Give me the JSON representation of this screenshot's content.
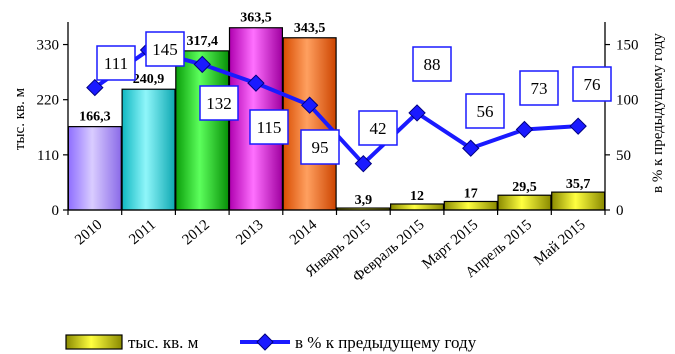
{
  "chart_data": {
    "type": "bar+line",
    "categories": [
      "2010",
      "2011",
      "2012",
      "2013",
      "2014",
      "Январь 2015",
      "Февраль 2015",
      "Март 2015",
      "Апрель 2015",
      "Май 2015"
    ],
    "bar_series": {
      "name": "тыс. кв. м",
      "values": [
        166.3,
        240.9,
        317.4,
        363.5,
        343.5,
        3.9,
        12,
        17,
        29.5,
        35.7
      ],
      "labels": [
        "166,3",
        "240,9",
        "317,4",
        "363,5",
        "343,5",
        "3,9",
        "12",
        "17",
        "29,5",
        "35,7"
      ],
      "colors": [
        "#b49cff",
        "#22d0d8",
        "#13cc13",
        "#e010e0",
        "#ff6a12",
        "#c6c610",
        "#c6c610",
        "#c6c610",
        "#c6c610",
        "#c6c610"
      ]
    },
    "line_series": {
      "name": "в % к предыдущему году",
      "values": [
        111,
        145,
        132,
        115,
        95,
        42,
        88,
        56,
        73,
        76
      ],
      "labels": [
        "111",
        "145",
        "132",
        "115",
        "95",
        "42",
        "88",
        "56",
        "73",
        "76"
      ],
      "color": "#1a1aff"
    },
    "y_left": {
      "label": "тыс. кв. м",
      "ticks": [
        "0",
        "110",
        "220",
        "330"
      ],
      "range": [
        0,
        363
      ]
    },
    "y_right": {
      "label": "в % к предыдущему году",
      "ticks": [
        "0",
        "50",
        "100",
        "150"
      ],
      "range": [
        0,
        165
      ]
    },
    "legend": {
      "position": "bottom"
    },
    "grid": false
  }
}
